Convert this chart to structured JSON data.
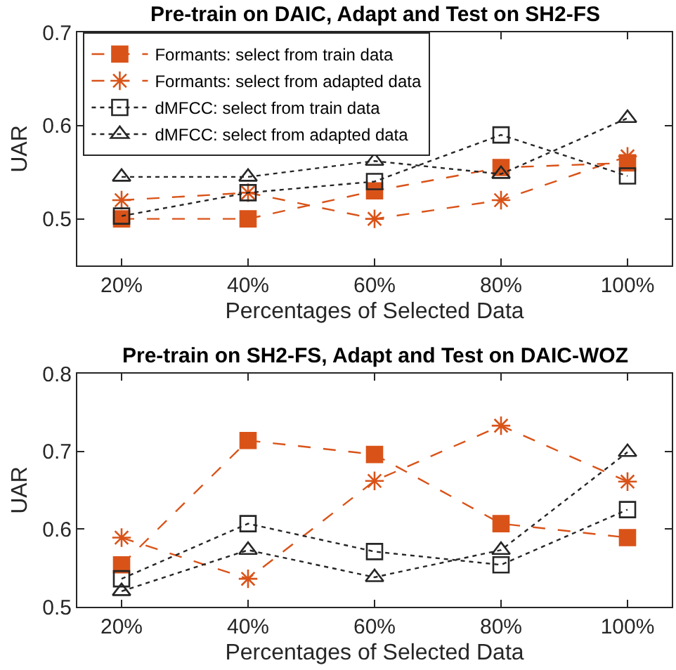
{
  "chart_data": [
    {
      "type": "line",
      "title": "Pre-train on DAIC, Adapt and Test on SH2-FS",
      "xlabel": "Percentages of Selected Data",
      "ylabel": "UAR",
      "categories": [
        "20%",
        "40%",
        "60%",
        "80%",
        "100%"
      ],
      "ylim": [
        0.45,
        0.7
      ],
      "yticks": [
        0.5,
        0.6,
        0.7
      ],
      "legend": "top left",
      "series": [
        {
          "name": "Formants: select from train data",
          "color": "#d95319",
          "marker": "square",
          "line_style": "dashed",
          "values": [
            0.5,
            0.5,
            0.53,
            0.555,
            0.56
          ]
        },
        {
          "name": "Formants: select from adapted data",
          "color": "#d95319",
          "marker": "cross",
          "line_style": "dashed",
          "values": [
            0.52,
            0.528,
            0.5,
            0.52,
            0.567
          ]
        },
        {
          "name": "dMFCC: select from train data",
          "color": "#262626",
          "marker": "square",
          "line_style": "dotted",
          "values": [
            0.503,
            0.528,
            0.54,
            0.59,
            0.546
          ]
        },
        {
          "name": "dMFCC: select from adapted data",
          "color": "#262626",
          "marker": "triangle",
          "line_style": "dotted",
          "values": [
            0.545,
            0.545,
            0.562,
            0.548,
            0.608
          ]
        }
      ]
    },
    {
      "type": "line",
      "title": "Pre-train on SH2-FS, Adapt and Test on DAIC-WOZ",
      "xlabel": "Percentages of Selected Data",
      "ylabel": "UAR",
      "categories": [
        "20%",
        "40%",
        "60%",
        "80%",
        "100%"
      ],
      "ylim": [
        0.5,
        0.8
      ],
      "yticks": [
        0.5,
        0.6,
        0.7,
        0.8
      ],
      "legend": false,
      "series": [
        {
          "color": "#d95319",
          "marker": "square",
          "line_style": "dashed",
          "values": [
            0.554,
            0.714,
            0.696,
            0.607,
            0.589
          ]
        },
        {
          "color": "#d95319",
          "marker": "cross",
          "line_style": "dashed",
          "values": [
            0.589,
            0.536,
            0.662,
            0.733,
            0.661
          ]
        },
        {
          "color": "#262626",
          "marker": "square",
          "line_style": "dotted",
          "values": [
            0.536,
            0.607,
            0.571,
            0.554,
            0.625
          ]
        },
        {
          "color": "#262626",
          "marker": "triangle",
          "line_style": "dotted",
          "values": [
            0.52,
            0.573,
            0.538,
            0.573,
            0.699
          ]
        }
      ]
    }
  ]
}
